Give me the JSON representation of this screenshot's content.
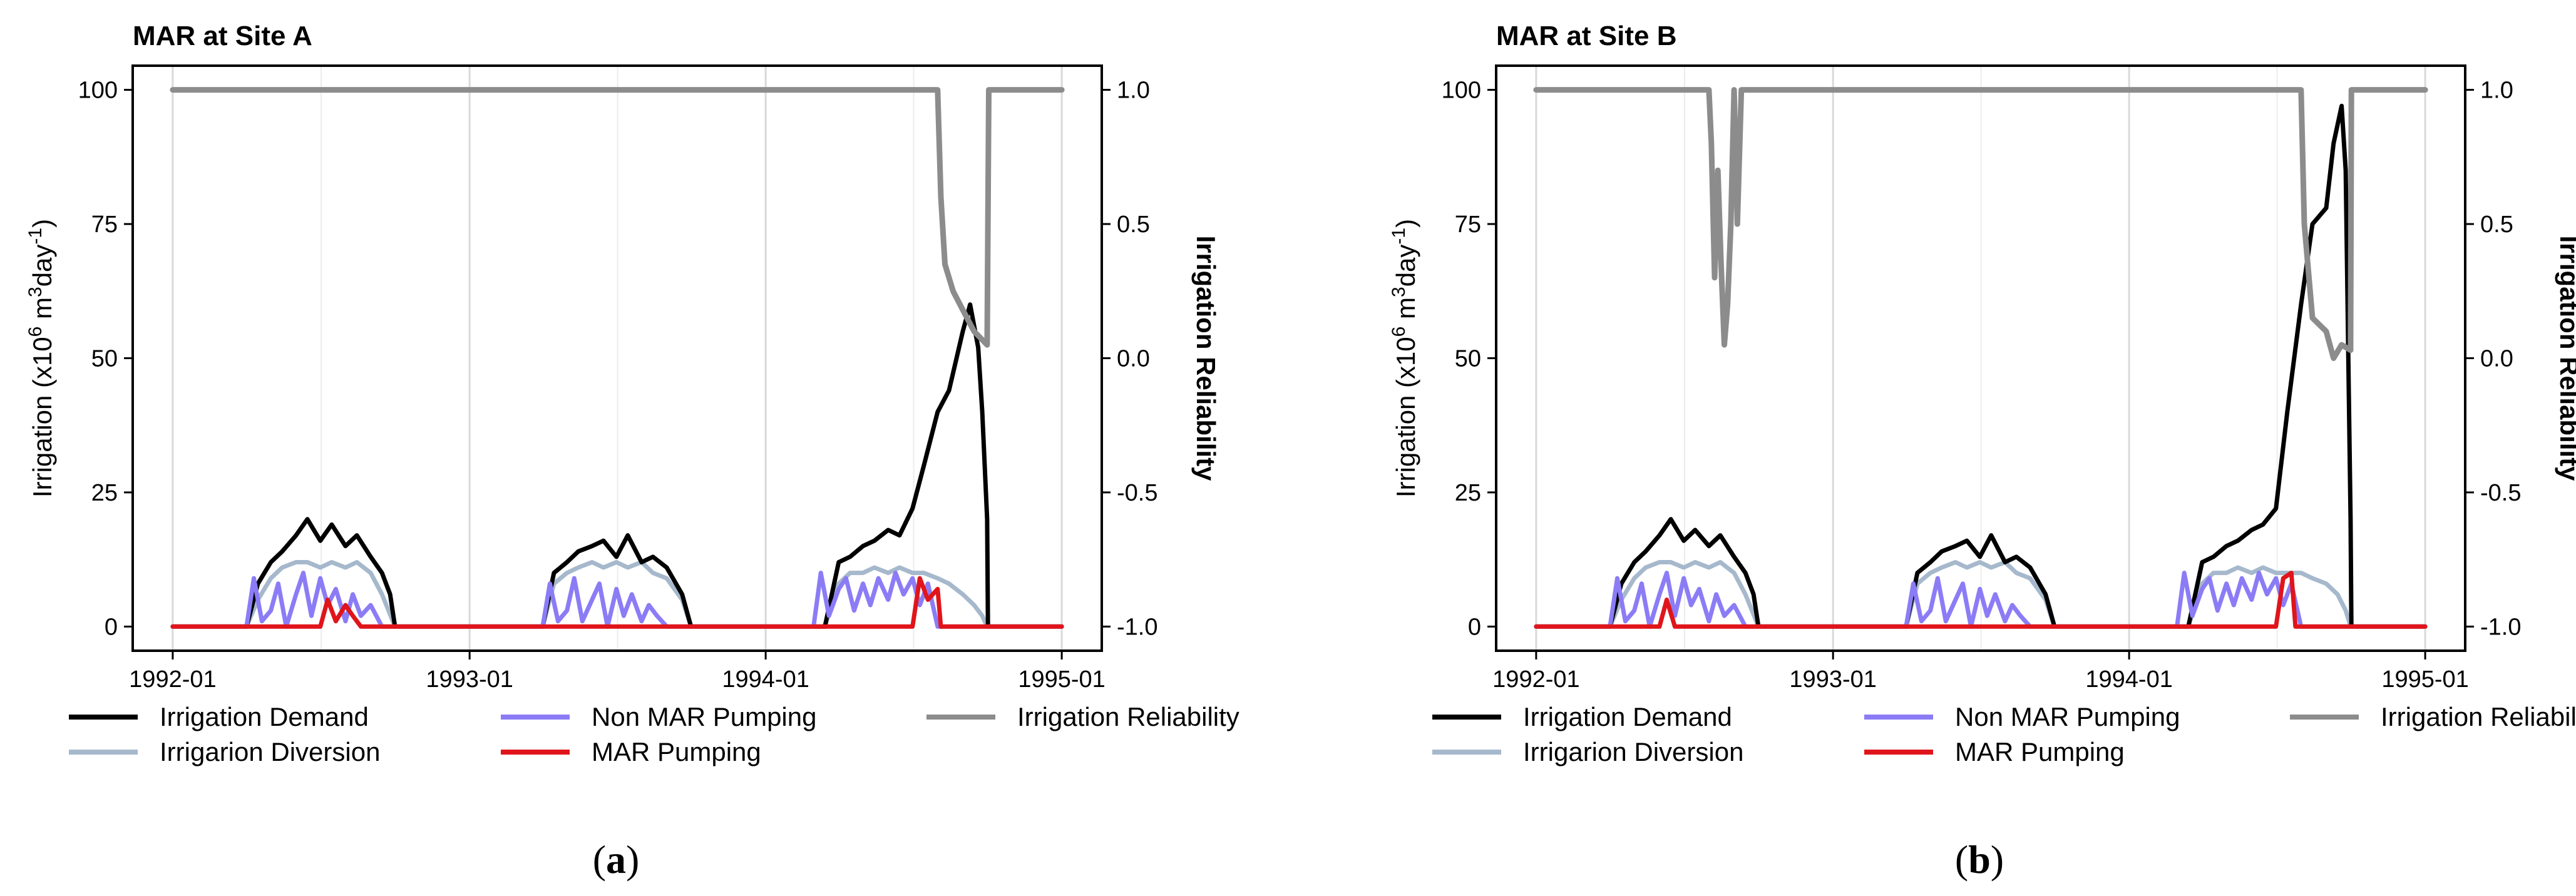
{
  "chart_data": [
    {
      "type": "line",
      "title": "MAR at Site A",
      "caption_letter": "a",
      "ylabel_prefix": "Irrigation (x10",
      "ylabel_sup1": "6",
      "ylabel_mid": " m",
      "ylabel_sup2": "3",
      "ylabel_mid2": "day",
      "ylabel_sup3": "-1",
      "ylabel_suffix": ")",
      "y2label": "Irrigation Reliability",
      "xlim": [
        "1992-01-01",
        "1995-01-01"
      ],
      "ylim": [
        0,
        100
      ],
      "y2lim": [
        -1.0,
        1.0
      ],
      "xticks": [
        "1992-01",
        "1993-01",
        "1994-01",
        "1995-01"
      ],
      "yticks": [
        "0",
        "25",
        "50",
        "75",
        "100"
      ],
      "y2ticks": [
        "-1.0",
        "-0.5",
        "0.0",
        "0.5",
        "1.0"
      ],
      "grid": true,
      "series": [
        {
          "name": "Irrigation Demand",
          "color": "#000000",
          "axis": "left",
          "x": [
            "1992-01-01",
            "1992-04-01",
            "1992-04-15",
            "1992-05-01",
            "1992-05-15",
            "1992-06-01",
            "1992-06-15",
            "1992-07-01",
            "1992-07-15",
            "1992-08-01",
            "1992-08-15",
            "1992-09-01",
            "1992-09-15",
            "1992-09-25",
            "1992-10-01",
            "1993-04-01",
            "1993-04-15",
            "1993-05-01",
            "1993-05-15",
            "1993-06-01",
            "1993-06-15",
            "1993-07-01",
            "1993-07-15",
            "1993-08-01",
            "1993-08-15",
            "1993-09-01",
            "1993-09-20",
            "1993-10-01",
            "1994-03-15",
            "1994-04-01",
            "1994-04-15",
            "1994-05-01",
            "1994-05-15",
            "1994-06-01",
            "1994-06-15",
            "1994-07-01",
            "1994-07-15",
            "1994-08-01",
            "1994-08-15",
            "1994-09-01",
            "1994-09-10",
            "1994-09-20",
            "1994-09-25",
            "1994-10-01",
            "1994-10-02",
            "1994-10-05",
            "1995-01-01"
          ],
          "values": [
            0,
            0,
            8,
            12,
            14,
            17,
            20,
            16,
            19,
            15,
            17,
            13,
            10,
            6,
            0,
            0,
            10,
            12,
            14,
            15,
            16,
            13,
            17,
            12,
            13,
            11,
            6,
            0,
            0,
            12,
            13,
            15,
            16,
            18,
            17,
            22,
            30,
            40,
            44,
            55,
            60,
            52,
            40,
            20,
            0,
            0,
            0
          ]
        },
        {
          "name": "Irrigarion Diversion",
          "color": "#a6b8cc",
          "axis": "left",
          "x": [
            "1992-01-01",
            "1992-04-01",
            "1992-04-15",
            "1992-05-01",
            "1992-05-15",
            "1992-06-01",
            "1992-06-15",
            "1992-07-01",
            "1992-07-15",
            "1992-08-01",
            "1992-08-15",
            "1992-09-01",
            "1992-09-15",
            "1992-10-01",
            "1993-04-01",
            "1993-04-15",
            "1993-05-01",
            "1993-05-15",
            "1993-06-01",
            "1993-06-15",
            "1993-07-01",
            "1993-07-15",
            "1993-08-01",
            "1993-08-15",
            "1993-09-01",
            "1993-09-20",
            "1993-10-01",
            "1994-03-15",
            "1994-04-01",
            "1994-04-15",
            "1994-05-01",
            "1994-05-15",
            "1994-06-01",
            "1994-06-15",
            "1994-07-01",
            "1994-07-15",
            "1994-08-01",
            "1994-08-15",
            "1994-09-01",
            "1994-09-15",
            "1994-09-25",
            "1994-10-01",
            "1995-01-01"
          ],
          "values": [
            0,
            0,
            5,
            9,
            11,
            12,
            12,
            11,
            12,
            11,
            12,
            10,
            6,
            0,
            0,
            8,
            10,
            11,
            12,
            11,
            12,
            11,
            12,
            10,
            9,
            5,
            0,
            0,
            8,
            10,
            10,
            11,
            10,
            11,
            10,
            10,
            9,
            8,
            6,
            4,
            2,
            0,
            0
          ]
        },
        {
          "name": "Non MAR Pumping",
          "color": "#8b7cf6",
          "axis": "left",
          "x": [
            "1992-01-01",
            "1992-04-01",
            "1992-04-10",
            "1992-04-20",
            "1992-05-01",
            "1992-05-10",
            "1992-05-20",
            "1992-06-01",
            "1992-06-10",
            "1992-06-20",
            "1992-07-01",
            "1992-07-10",
            "1992-07-20",
            "1992-08-01",
            "1992-08-10",
            "1992-08-20",
            "1992-09-01",
            "1992-09-15",
            "1993-04-01",
            "1993-04-10",
            "1993-04-20",
            "1993-05-01",
            "1993-05-10",
            "1993-05-20",
            "1993-06-01",
            "1993-06-10",
            "1993-06-20",
            "1993-07-01",
            "1993-07-10",
            "1993-07-20",
            "1993-08-01",
            "1993-08-10",
            "1993-08-20",
            "1993-09-01",
            "1994-03-01",
            "1994-03-10",
            "1994-03-20",
            "1994-04-01",
            "1994-04-10",
            "1994-04-20",
            "1994-05-01",
            "1994-05-10",
            "1994-05-20",
            "1994-06-01",
            "1994-06-10",
            "1994-06-20",
            "1994-07-01",
            "1994-07-10",
            "1994-07-20",
            "1994-08-01",
            "1995-01-01"
          ],
          "values": [
            0,
            0,
            9,
            1,
            3,
            8,
            0,
            6,
            10,
            2,
            9,
            4,
            7,
            1,
            6,
            2,
            4,
            0,
            0,
            8,
            1,
            3,
            9,
            1,
            5,
            8,
            0,
            7,
            2,
            6,
            1,
            4,
            2,
            0,
            0,
            10,
            2,
            7,
            9,
            3,
            8,
            4,
            9,
            5,
            10,
            6,
            9,
            4,
            8,
            0,
            0
          ]
        },
        {
          "name": "MAR Pumping",
          "color": "#e0151b",
          "axis": "left",
          "x": [
            "1992-01-01",
            "1992-07-01",
            "1992-07-10",
            "1992-07-20",
            "1992-08-01",
            "1992-08-10",
            "1992-08-20",
            "1994-07-01",
            "1994-07-10",
            "1994-07-20",
            "1994-08-01",
            "1994-08-05",
            "1995-01-01"
          ],
          "values": [
            0,
            0,
            5,
            1,
            4,
            2,
            0,
            0,
            9,
            5,
            7,
            0,
            0
          ]
        },
        {
          "name": "Irrigation Reliability",
          "color": "#8c8c8c",
          "axis": "right",
          "x": [
            "1992-01-01",
            "1994-08-01",
            "1994-08-05",
            "1994-08-10",
            "1994-08-20",
            "1994-09-01",
            "1994-09-15",
            "1994-10-01",
            "1994-10-03",
            "1995-01-01"
          ],
          "values": [
            1.0,
            1.0,
            0.6,
            0.35,
            0.25,
            0.18,
            0.1,
            0.05,
            1.0,
            1.0
          ]
        }
      ]
    },
    {
      "type": "line",
      "title": "MAR at Site B",
      "caption_letter": "b",
      "ylabel_prefix": "Irrigation (x10",
      "ylabel_sup1": "6",
      "ylabel_mid": " m",
      "ylabel_sup2": "3",
      "ylabel_mid2": "day",
      "ylabel_sup3": "-1",
      "ylabel_suffix": ")",
      "y2label": "Irrigation Reliability",
      "xlim": [
        "1992-01-01",
        "1995-01-01"
      ],
      "ylim": [
        0,
        100
      ],
      "y2lim": [
        -1.0,
        1.0
      ],
      "xticks": [
        "1992-01",
        "1993-01",
        "1994-01",
        "1995-01"
      ],
      "yticks": [
        "0",
        "25",
        "50",
        "75",
        "100"
      ],
      "y2ticks": [
        "-1.0",
        "-0.5",
        "0.0",
        "0.5",
        "1.0"
      ],
      "grid": true,
      "series": [
        {
          "name": "Irrigation Demand",
          "color": "#000000",
          "axis": "left",
          "x": [
            "1992-01-01",
            "1992-04-01",
            "1992-04-15",
            "1992-05-01",
            "1992-05-15",
            "1992-06-01",
            "1992-06-15",
            "1992-07-01",
            "1992-07-15",
            "1992-08-01",
            "1992-08-15",
            "1992-09-01",
            "1992-09-15",
            "1992-09-25",
            "1992-10-01",
            "1993-04-01",
            "1993-04-15",
            "1993-05-01",
            "1993-05-15",
            "1993-06-01",
            "1993-06-15",
            "1993-07-01",
            "1993-07-15",
            "1993-08-01",
            "1993-08-15",
            "1993-09-01",
            "1993-09-20",
            "1993-10-01",
            "1994-03-15",
            "1994-04-01",
            "1994-04-15",
            "1994-05-01",
            "1994-05-15",
            "1994-06-01",
            "1994-06-15",
            "1994-07-01",
            "1994-07-15",
            "1994-08-01",
            "1994-08-15",
            "1994-09-01",
            "1994-09-10",
            "1994-09-20",
            "1994-09-25",
            "1994-10-01",
            "1994-10-02",
            "1994-10-05",
            "1995-01-01"
          ],
          "values": [
            0,
            0,
            8,
            12,
            14,
            17,
            20,
            16,
            18,
            15,
            17,
            13,
            10,
            6,
            0,
            0,
            10,
            12,
            14,
            15,
            16,
            13,
            17,
            12,
            13,
            11,
            6,
            0,
            0,
            12,
            13,
            15,
            16,
            18,
            19,
            22,
            40,
            60,
            75,
            78,
            90,
            97,
            85,
            20,
            0,
            0,
            0
          ]
        },
        {
          "name": "Irrigarion Diversion",
          "color": "#a6b8cc",
          "axis": "left",
          "x": [
            "1992-01-01",
            "1992-04-01",
            "1992-04-15",
            "1992-05-01",
            "1992-05-15",
            "1992-06-01",
            "1992-06-15",
            "1992-07-01",
            "1992-07-15",
            "1992-08-01",
            "1992-08-15",
            "1992-09-01",
            "1992-09-15",
            "1992-10-01",
            "1993-04-01",
            "1993-04-15",
            "1993-05-01",
            "1993-05-15",
            "1993-06-01",
            "1993-06-15",
            "1993-07-01",
            "1993-07-15",
            "1993-08-01",
            "1993-08-15",
            "1993-09-01",
            "1993-09-20",
            "1993-10-01",
            "1994-03-15",
            "1994-04-01",
            "1994-04-15",
            "1994-05-01",
            "1994-05-15",
            "1994-06-01",
            "1994-06-15",
            "1994-07-01",
            "1994-07-15",
            "1994-08-01",
            "1994-08-15",
            "1994-09-01",
            "1994-09-15",
            "1994-09-25",
            "1994-10-01",
            "1995-01-01"
          ],
          "values": [
            0,
            0,
            5,
            9,
            11,
            12,
            12,
            11,
            12,
            11,
            12,
            10,
            6,
            0,
            0,
            8,
            10,
            11,
            12,
            11,
            12,
            11,
            12,
            10,
            9,
            5,
            0,
            0,
            8,
            10,
            10,
            11,
            10,
            11,
            10,
            10,
            10,
            9,
            8,
            6,
            3,
            0,
            0
          ]
        },
        {
          "name": "Non MAR Pumping",
          "color": "#8b7cf6",
          "axis": "left",
          "x": [
            "1992-01-01",
            "1992-04-01",
            "1992-04-10",
            "1992-04-20",
            "1992-05-01",
            "1992-05-10",
            "1992-05-20",
            "1992-06-01",
            "1992-06-10",
            "1992-06-20",
            "1992-07-01",
            "1992-07-10",
            "1992-07-20",
            "1992-08-01",
            "1992-08-10",
            "1992-08-20",
            "1992-09-01",
            "1992-09-15",
            "1993-04-01",
            "1993-04-10",
            "1993-04-20",
            "1993-05-01",
            "1993-05-10",
            "1993-05-20",
            "1993-06-01",
            "1993-06-10",
            "1993-06-20",
            "1993-07-01",
            "1993-07-10",
            "1993-07-20",
            "1993-08-01",
            "1993-08-10",
            "1993-08-20",
            "1993-09-01",
            "1994-03-01",
            "1994-03-10",
            "1994-03-20",
            "1994-04-01",
            "1994-04-10",
            "1994-04-20",
            "1994-05-01",
            "1994-05-10",
            "1994-05-20",
            "1994-06-01",
            "1994-06-10",
            "1994-06-20",
            "1994-07-01",
            "1994-07-10",
            "1994-07-20",
            "1994-08-01",
            "1995-01-01"
          ],
          "values": [
            0,
            0,
            9,
            1,
            3,
            8,
            0,
            6,
            10,
            2,
            9,
            4,
            7,
            1,
            6,
            2,
            4,
            0,
            0,
            8,
            1,
            3,
            9,
            1,
            5,
            8,
            0,
            7,
            2,
            6,
            1,
            4,
            2,
            0,
            0,
            10,
            2,
            7,
            9,
            3,
            8,
            4,
            9,
            5,
            10,
            6,
            9,
            4,
            8,
            0,
            0
          ]
        },
        {
          "name": "MAR Pumping",
          "color": "#e0151b",
          "axis": "left",
          "x": [
            "1992-01-01",
            "1992-06-01",
            "1992-06-10",
            "1992-06-20",
            "1994-07-01",
            "1994-07-10",
            "1994-07-20",
            "1994-07-25",
            "1995-01-01"
          ],
          "values": [
            0,
            0,
            5,
            0,
            0,
            9,
            10,
            0,
            0
          ]
        },
        {
          "name": "Irrigation Reliability",
          "color": "#8c8c8c",
          "axis": "right",
          "x": [
            "1992-01-01",
            "1992-08-01",
            "1992-08-04",
            "1992-08-08",
            "1992-08-12",
            "1992-08-16",
            "1992-08-20",
            "1992-08-24",
            "1992-08-28",
            "1992-09-01",
            "1992-09-05",
            "1992-09-10",
            "1992-09-14",
            "1994-08-01",
            "1994-08-05",
            "1994-08-15",
            "1994-09-01",
            "1994-09-10",
            "1994-09-20",
            "1994-10-01",
            "1994-10-02",
            "1995-01-01"
          ],
          "values": [
            1.0,
            1.0,
            0.8,
            0.3,
            0.7,
            0.35,
            0.05,
            0.2,
            0.5,
            1.0,
            0.5,
            1.0,
            1.0,
            1.0,
            0.5,
            0.15,
            0.1,
            0.0,
            0.05,
            0.03,
            1.0,
            1.0
          ]
        }
      ]
    }
  ],
  "legend": {
    "items": [
      {
        "label": "Irrigation Demand",
        "color": "#000000"
      },
      {
        "label": "Non MAR Pumping",
        "color": "#8b7cf6"
      },
      {
        "label": "Irrigation Reliability",
        "color": "#8c8c8c"
      },
      {
        "label": "Irrigarion Diversion",
        "color": "#a6b8cc"
      },
      {
        "label": "MAR Pumping",
        "color": "#e0151b"
      }
    ]
  }
}
